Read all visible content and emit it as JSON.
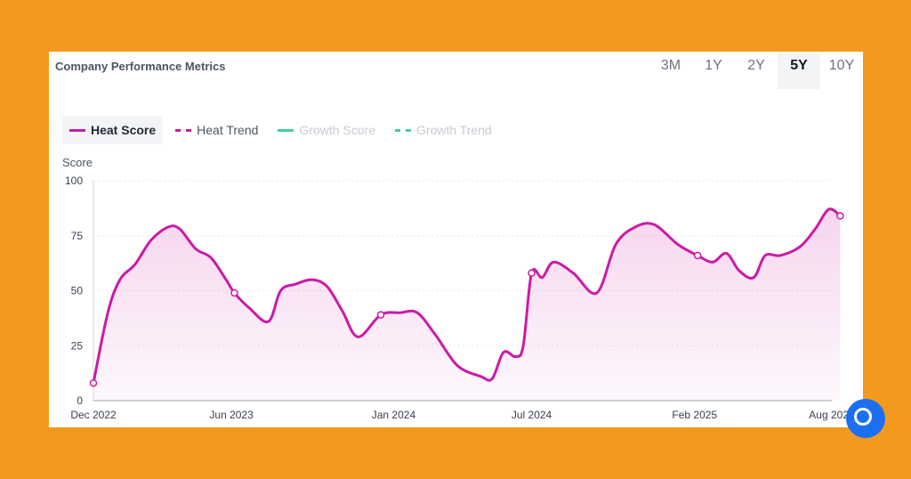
{
  "header": {
    "title": "Company Performance Metrics"
  },
  "ranges": [
    {
      "label": "3M",
      "active": false
    },
    {
      "label": "1Y",
      "active": false
    },
    {
      "label": "2Y",
      "active": false
    },
    {
      "label": "5Y",
      "active": true
    },
    {
      "label": "10Y",
      "active": false
    }
  ],
  "legend": [
    {
      "label": "Heat Score",
      "color": "#cc1aa5",
      "style": "solid",
      "state": "active"
    },
    {
      "label": "Heat Trend",
      "color": "#cc1aa5",
      "style": "dashed",
      "state": "on"
    },
    {
      "label": "Growth Score",
      "color": "#2ecc8f",
      "style": "solid",
      "state": "off"
    },
    {
      "label": "Growth Trend",
      "color": "#2ecc8f",
      "style": "dashed",
      "state": "off"
    }
  ],
  "chart_data": {
    "type": "area",
    "title": "Company Performance Metrics",
    "ylabel": "Score",
    "xlabel": "",
    "ylim": [
      0,
      100
    ],
    "yticks": [
      0,
      25,
      50,
      75,
      100
    ],
    "xlim": [
      "2022-12-01",
      "2025-08-01"
    ],
    "xticks": [
      {
        "label": "Dec 2022",
        "date": "2022-12-01"
      },
      {
        "label": "Jun 2023",
        "date": "2023-06-01"
      },
      {
        "label": "Jan 2024",
        "date": "2024-01-01"
      },
      {
        "label": "Jul 2024",
        "date": "2024-07-01"
      },
      {
        "label": "Feb 2025",
        "date": "2025-02-01"
      },
      {
        "label": "Aug 2025",
        "date": "2025-08-01"
      }
    ],
    "grid": true,
    "legend_position": "top-left",
    "series": [
      {
        "name": "Heat Score",
        "color": "#cc1aa5",
        "points": [
          [
            "2022-12-01",
            8
          ],
          [
            "2022-12-20",
            40
          ],
          [
            "2023-01-05",
            55
          ],
          [
            "2023-01-25",
            62
          ],
          [
            "2023-02-15",
            73
          ],
          [
            "2023-03-10",
            79
          ],
          [
            "2023-03-25",
            78
          ],
          [
            "2023-04-15",
            69
          ],
          [
            "2023-05-05",
            65
          ],
          [
            "2023-05-25",
            55
          ],
          [
            "2023-06-05",
            49
          ],
          [
            "2023-06-25",
            42
          ],
          [
            "2023-07-20",
            36
          ],
          [
            "2023-08-05",
            50
          ],
          [
            "2023-08-25",
            53
          ],
          [
            "2023-09-15",
            55
          ],
          [
            "2023-10-05",
            52
          ],
          [
            "2023-10-25",
            41
          ],
          [
            "2023-11-15",
            29
          ],
          [
            "2023-12-15",
            39
          ],
          [
            "2024-01-10",
            40
          ],
          [
            "2024-02-01",
            40
          ],
          [
            "2024-02-25",
            30
          ],
          [
            "2024-03-25",
            16
          ],
          [
            "2024-04-25",
            11
          ],
          [
            "2024-05-10",
            10
          ],
          [
            "2024-05-25",
            22
          ],
          [
            "2024-06-10",
            20
          ],
          [
            "2024-06-20",
            25
          ],
          [
            "2024-07-01",
            58
          ],
          [
            "2024-07-15",
            56
          ],
          [
            "2024-07-30",
            63
          ],
          [
            "2024-08-25",
            58
          ],
          [
            "2024-09-25",
            49
          ],
          [
            "2024-10-20",
            71
          ],
          [
            "2024-11-15",
            79
          ],
          [
            "2024-12-10",
            80
          ],
          [
            "2025-01-10",
            71
          ],
          [
            "2025-02-05",
            66
          ],
          [
            "2025-02-25",
            63
          ],
          [
            "2025-03-15",
            67
          ],
          [
            "2025-04-01",
            59
          ],
          [
            "2025-04-20",
            56
          ],
          [
            "2025-05-05",
            66
          ],
          [
            "2025-05-25",
            66
          ],
          [
            "2025-06-20",
            70
          ],
          [
            "2025-07-10",
            78
          ],
          [
            "2025-07-28",
            87
          ],
          [
            "2025-08-12",
            84
          ]
        ],
        "markers": [
          [
            "2022-12-01",
            8
          ],
          [
            "2023-06-05",
            49
          ],
          [
            "2023-12-15",
            39
          ],
          [
            "2024-07-01",
            58
          ],
          [
            "2025-02-05",
            66
          ],
          [
            "2025-08-12",
            84
          ]
        ]
      }
    ]
  },
  "fab": {
    "icon": "chat-icon"
  }
}
